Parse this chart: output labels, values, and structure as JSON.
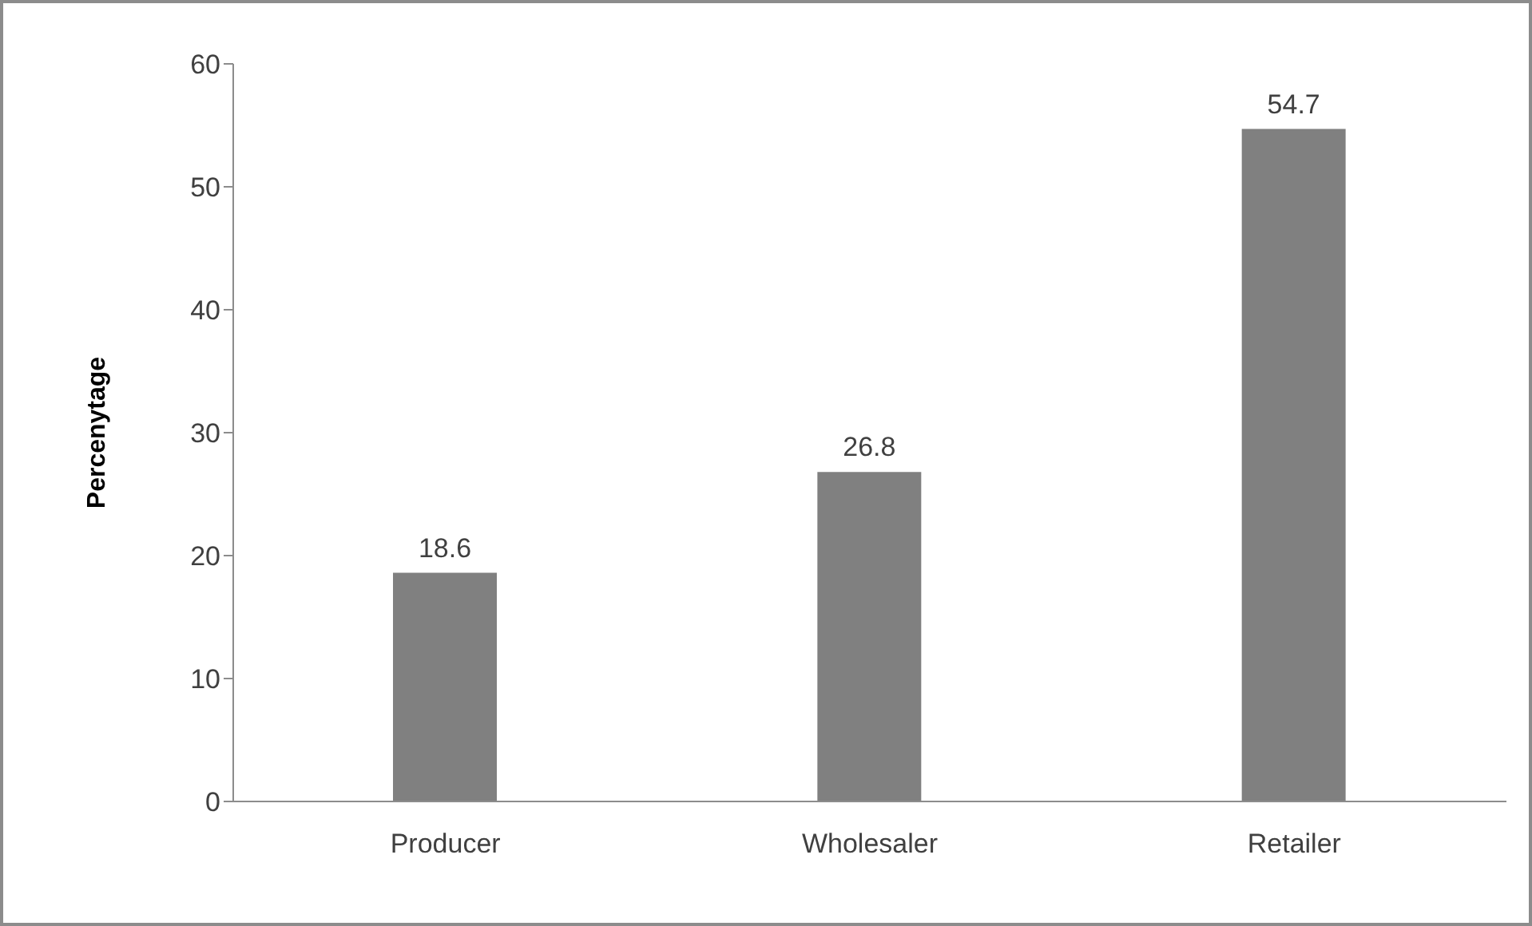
{
  "chart_data": {
    "type": "bar",
    "ylabel": "Percenytage",
    "categories": [
      "Producer",
      "Wholesaler",
      "Retailer"
    ],
    "values": [
      18.6,
      26.8,
      54.7
    ],
    "color": "#808080",
    "ylim": [
      0,
      60
    ],
    "yticks": [
      0,
      10,
      20,
      30,
      40,
      50,
      60
    ],
    "grid": false,
    "data_labels": true
  }
}
